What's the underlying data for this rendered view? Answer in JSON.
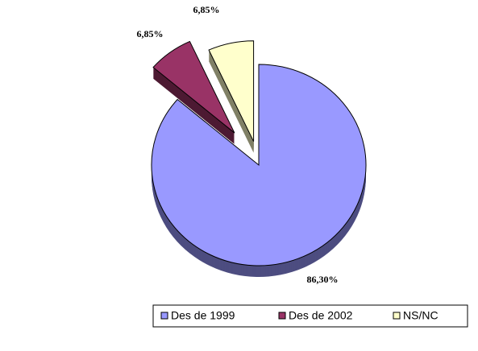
{
  "chart_data": {
    "type": "pie",
    "categories": [
      "Des de 1999",
      "Des de 2002",
      "NS/NC"
    ],
    "values": [
      86.3,
      6.85,
      6.85
    ],
    "value_labels": [
      "86,30%",
      "6,85%",
      "6,85%"
    ],
    "colors": [
      "#9999ff",
      "#993366",
      "#ffffcc"
    ],
    "legend": "bottom"
  }
}
